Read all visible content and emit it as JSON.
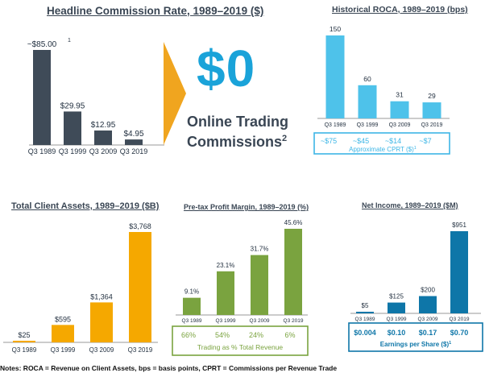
{
  "headline": {
    "title": "Headline Commission Rate, 1989–2019 ($)",
    "footnote_mark": "1",
    "big_value": "$0",
    "online_line1": "Online Trading",
    "online_line2": "Commissions",
    "online_sup": "2",
    "colors": {
      "bar": "#3f4b58",
      "chevron": "#f0a51f",
      "big": "#1aa3d9"
    },
    "chart_data": {
      "type": "bar",
      "title": "Headline Commission Rate, 1989–2019 ($)",
      "categories": [
        "Q3 1989",
        "Q3 1999",
        "Q3 2009",
        "Q3 2019"
      ],
      "values": [
        85.0,
        29.95,
        12.95,
        4.95
      ],
      "labels": [
        "~$85.00",
        "$29.95",
        "$12.95",
        "$4.95"
      ],
      "ylim": [
        0,
        85
      ]
    }
  },
  "roca": {
    "title": "Historical ROCA, 1989–2019 (bps)",
    "box_values": [
      "~$75",
      "~$45",
      "~$14",
      "~$7"
    ],
    "box_caption": "Approximate CPRT ($)",
    "box_sup": "1",
    "colors": {
      "bar": "#4ec2ea",
      "box": "#3db6e6"
    },
    "chart_data": {
      "type": "bar",
      "title": "Historical ROCA, 1989–2019 (bps)",
      "categories": [
        "Q3 1989",
        "Q3 1999",
        "Q3 2009",
        "Q3 2019"
      ],
      "values": [
        150,
        60,
        31,
        29
      ],
      "labels": [
        "150",
        "60",
        "31",
        "29"
      ],
      "ylim": [
        0,
        150
      ]
    }
  },
  "assets": {
    "title": "Total Client Assets, 1989–2019 ($B)",
    "colors": {
      "bar": "#f5a800"
    },
    "chart_data": {
      "type": "bar",
      "title": "Total Client Assets, 1989–2019 ($B)",
      "categories": [
        "Q3 1989",
        "Q3 1999",
        "Q3 2009",
        "Q3 2019"
      ],
      "values": [
        25,
        595,
        1364,
        3768
      ],
      "labels": [
        "$25",
        "$595",
        "$1,364",
        "$3,768"
      ],
      "ylim": [
        0,
        3768
      ]
    }
  },
  "margin": {
    "title": "Pre-tax Profit Margin, 1989–2019 (%)",
    "box_values": [
      "66%",
      "54%",
      "24%",
      "6%"
    ],
    "box_caption": "Trading as % Total Revenue",
    "colors": {
      "bar": "#7aa33f",
      "box": "#7aa33f"
    },
    "chart_data": {
      "type": "bar",
      "title": "Pre-tax Profit Margin, 1989–2019 (%)",
      "categories": [
        "Q3 1989",
        "Q3 1999",
        "Q3 2009",
        "Q3 2019"
      ],
      "values": [
        9.1,
        23.1,
        31.7,
        45.6
      ],
      "labels": [
        "9.1%",
        "23.1%",
        "31.7%",
        "45.6%"
      ],
      "ylim": [
        0,
        45.6
      ]
    }
  },
  "income": {
    "title": "Net Income, 1989–2019 ($M)",
    "box_values": [
      "$0.004",
      "$0.10",
      "$0.17",
      "$0.70"
    ],
    "box_caption": "Earnings per Share ($)",
    "box_sup": "1",
    "colors": {
      "bar": "#0e76a8",
      "box": "#0e76a8"
    },
    "chart_data": {
      "type": "bar",
      "title": "Net Income, 1989–2019 ($M)",
      "categories": [
        "Q3 1989",
        "Q3 1999",
        "Q3 2009",
        "Q3 2019"
      ],
      "values": [
        5,
        125,
        200,
        951
      ],
      "labels": [
        "$5",
        "$125",
        "$200",
        "$951"
      ],
      "ylim": [
        0,
        951
      ]
    }
  },
  "notes": "Notes: ROCA = Revenue on Client Assets, bps = basis points, CPRT = Commissions per Revenue Trade"
}
